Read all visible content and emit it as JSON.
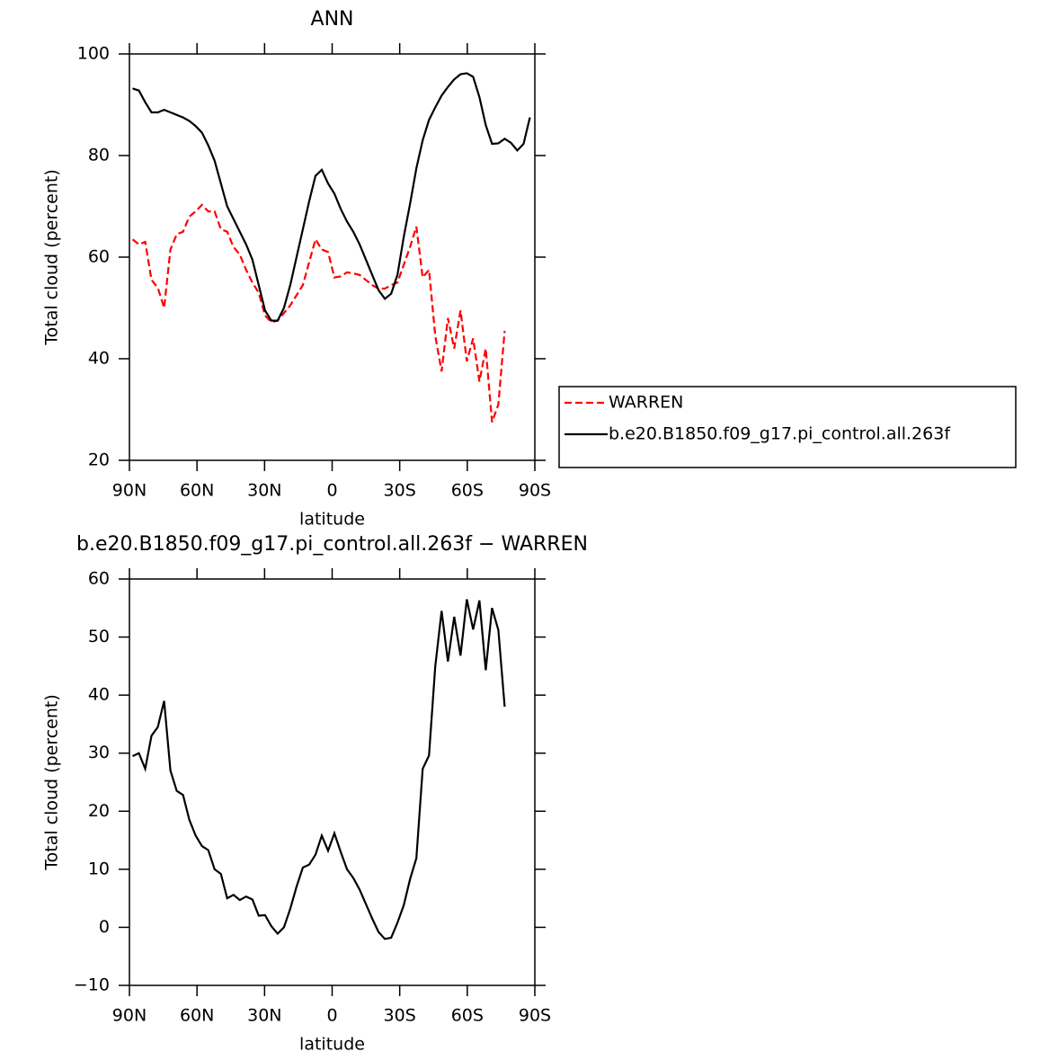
{
  "chart_data": [
    {
      "type": "line",
      "title": "ANN",
      "xlabel": "latitude",
      "ylabel": "Total cloud (percent)",
      "x": [
        88.6,
        85.8,
        83.0,
        80.2,
        77.4,
        74.6,
        71.8,
        69.0,
        66.2,
        63.4,
        60.6,
        57.8,
        55.0,
        52.2,
        49.4,
        46.6,
        43.8,
        41.0,
        38.2,
        35.4,
        32.6,
        29.8,
        27.0,
        24.2,
        21.4,
        18.6,
        15.8,
        13.0,
        10.2,
        7.4,
        4.6,
        1.8,
        -1.0,
        -3.8,
        -6.6,
        -9.4,
        -12.2,
        -15.0,
        -17.8,
        -20.6,
        -23.4,
        -26.2,
        -29.0,
        -31.8,
        -34.6,
        -37.4,
        -40.2,
        -43.0,
        -45.8,
        -48.6,
        -51.4,
        -54.2,
        -57.0,
        -59.8,
        -62.6,
        -65.4,
        -68.2,
        -71.0,
        -73.8,
        -76.6,
        -79.4,
        -82.2,
        -85.0,
        -87.8
      ],
      "series": [
        {
          "name": "WARREN",
          "color": "#ff0000",
          "linestyle": "dashed",
          "values": [
            63.5,
            62.5,
            63,
            55.5,
            54,
            50,
            61.5,
            64.5,
            65,
            68,
            69,
            70.3,
            69,
            69,
            65.5,
            65,
            62,
            60.5,
            57.5,
            55,
            53,
            48.5,
            47.2,
            47.5,
            49,
            50.5,
            52.5,
            54.5,
            59,
            63.5,
            61.5,
            61,
            56,
            56.2,
            57,
            56.8,
            56.5,
            55.5,
            54.5,
            53.8,
            53.8,
            54.5,
            55,
            58.5,
            62,
            66,
            56,
            57.5,
            44.5,
            37.5,
            48,
            42,
            49.5,
            39.5,
            44,
            35.5,
            42,
            27.5,
            31,
            45.5,
            null,
            null,
            null,
            null
          ]
        },
        {
          "name": "b.e20.B1850.f09_g17.pi_control.all.263f",
          "color": "#000000",
          "linestyle": "solid",
          "values": [
            93.2,
            92.8,
            90.5,
            88.5,
            88.5,
            89,
            88.5,
            88,
            87.5,
            86.8,
            85.8,
            84.5,
            82,
            79,
            74.5,
            70,
            67.5,
            65,
            62.5,
            59.5,
            54.5,
            49.5,
            47.5,
            47.5,
            50,
            54.5,
            60,
            65.5,
            71,
            76,
            77.2,
            74.5,
            72.5,
            69.5,
            67,
            65,
            62.5,
            59.5,
            56.5,
            53.5,
            51.8,
            52.8,
            56.5,
            64,
            70.5,
            77.5,
            83,
            87,
            89.5,
            91.8,
            93.5,
            95,
            96,
            96.2,
            95.5,
            91.5,
            86,
            82.3,
            82.4,
            83.3,
            82.5,
            81,
            82.3,
            87.5
          ]
        }
      ],
      "xlim": [
        90,
        -90
      ],
      "xticks": [
        {
          "value": 90,
          "label": "90N"
        },
        {
          "value": 60,
          "label": "60N"
        },
        {
          "value": 30,
          "label": "30N"
        },
        0,
        {
          "value": -30,
          "label": "30S"
        },
        {
          "value": -60,
          "label": "60S"
        },
        {
          "value": -90,
          "label": "90S"
        }
      ],
      "ylim": [
        20,
        100
      ],
      "yticks": [
        20,
        40,
        60,
        80,
        100
      ],
      "legend": "right"
    },
    {
      "type": "line",
      "title": "b.e20.B1850.f09_g17.pi_control.all.263f − WARREN",
      "xlabel": "latitude",
      "ylabel": "Total cloud (percent)",
      "x": [
        88.6,
        85.8,
        83.0,
        80.2,
        77.4,
        74.6,
        71.8,
        69.0,
        66.2,
        63.4,
        60.6,
        57.8,
        55.0,
        52.2,
        49.4,
        46.6,
        43.8,
        41.0,
        38.2,
        35.4,
        32.6,
        29.8,
        27.0,
        24.2,
        21.4,
        18.6,
        15.8,
        13.0,
        10.2,
        7.4,
        4.6,
        1.8,
        -1.0,
        -3.8,
        -6.6,
        -9.4,
        -12.2,
        -15.0,
        -17.8,
        -20.6,
        -23.4,
        -26.2,
        -29.0,
        -31.8,
        -34.6,
        -37.4,
        -40.2,
        -43.0,
        -45.8,
        -48.6,
        -51.4,
        -54.2,
        -57.0,
        -59.8,
        -62.6,
        -65.4,
        -68.2,
        -71.0,
        -73.8,
        -76.6
      ],
      "series": [
        {
          "color": "#000000",
          "linestyle": "solid",
          "values": [
            29.5,
            30,
            27.3,
            33,
            34.5,
            39,
            27,
            23.5,
            22.8,
            18.5,
            15.8,
            14,
            13.3,
            10,
            9.2,
            5,
            5.6,
            4.7,
            5.3,
            4.8,
            2,
            2.1,
            0.2,
            -1.1,
            0,
            3.2,
            7,
            10.3,
            10.8,
            12.5,
            15.8,
            13.2,
            16.2,
            13,
            10,
            8.5,
            6.5,
            4,
            1.5,
            -0.8,
            -2,
            -1.8,
            0.8,
            3.8,
            8.3,
            11.9,
            27.3,
            29.6,
            45,
            54.5,
            45.8,
            53.5,
            46.8,
            56.5,
            51.3,
            56.3,
            44.3,
            55,
            51.2,
            38
          ]
        }
      ],
      "xlim": [
        90,
        -90
      ],
      "xticks": [
        {
          "value": 90,
          "label": "90N"
        },
        {
          "value": 60,
          "label": "60N"
        },
        {
          "value": 30,
          "label": "30N"
        },
        0,
        {
          "value": -30,
          "label": "30S"
        },
        {
          "value": -60,
          "label": "60S"
        },
        {
          "value": -90,
          "label": "90S"
        }
      ],
      "ylim": [
        -10,
        60
      ],
      "yticks": [
        {
          "value": -10,
          "label": "−10"
        },
        0,
        10,
        20,
        30,
        40,
        50,
        60
      ]
    }
  ]
}
